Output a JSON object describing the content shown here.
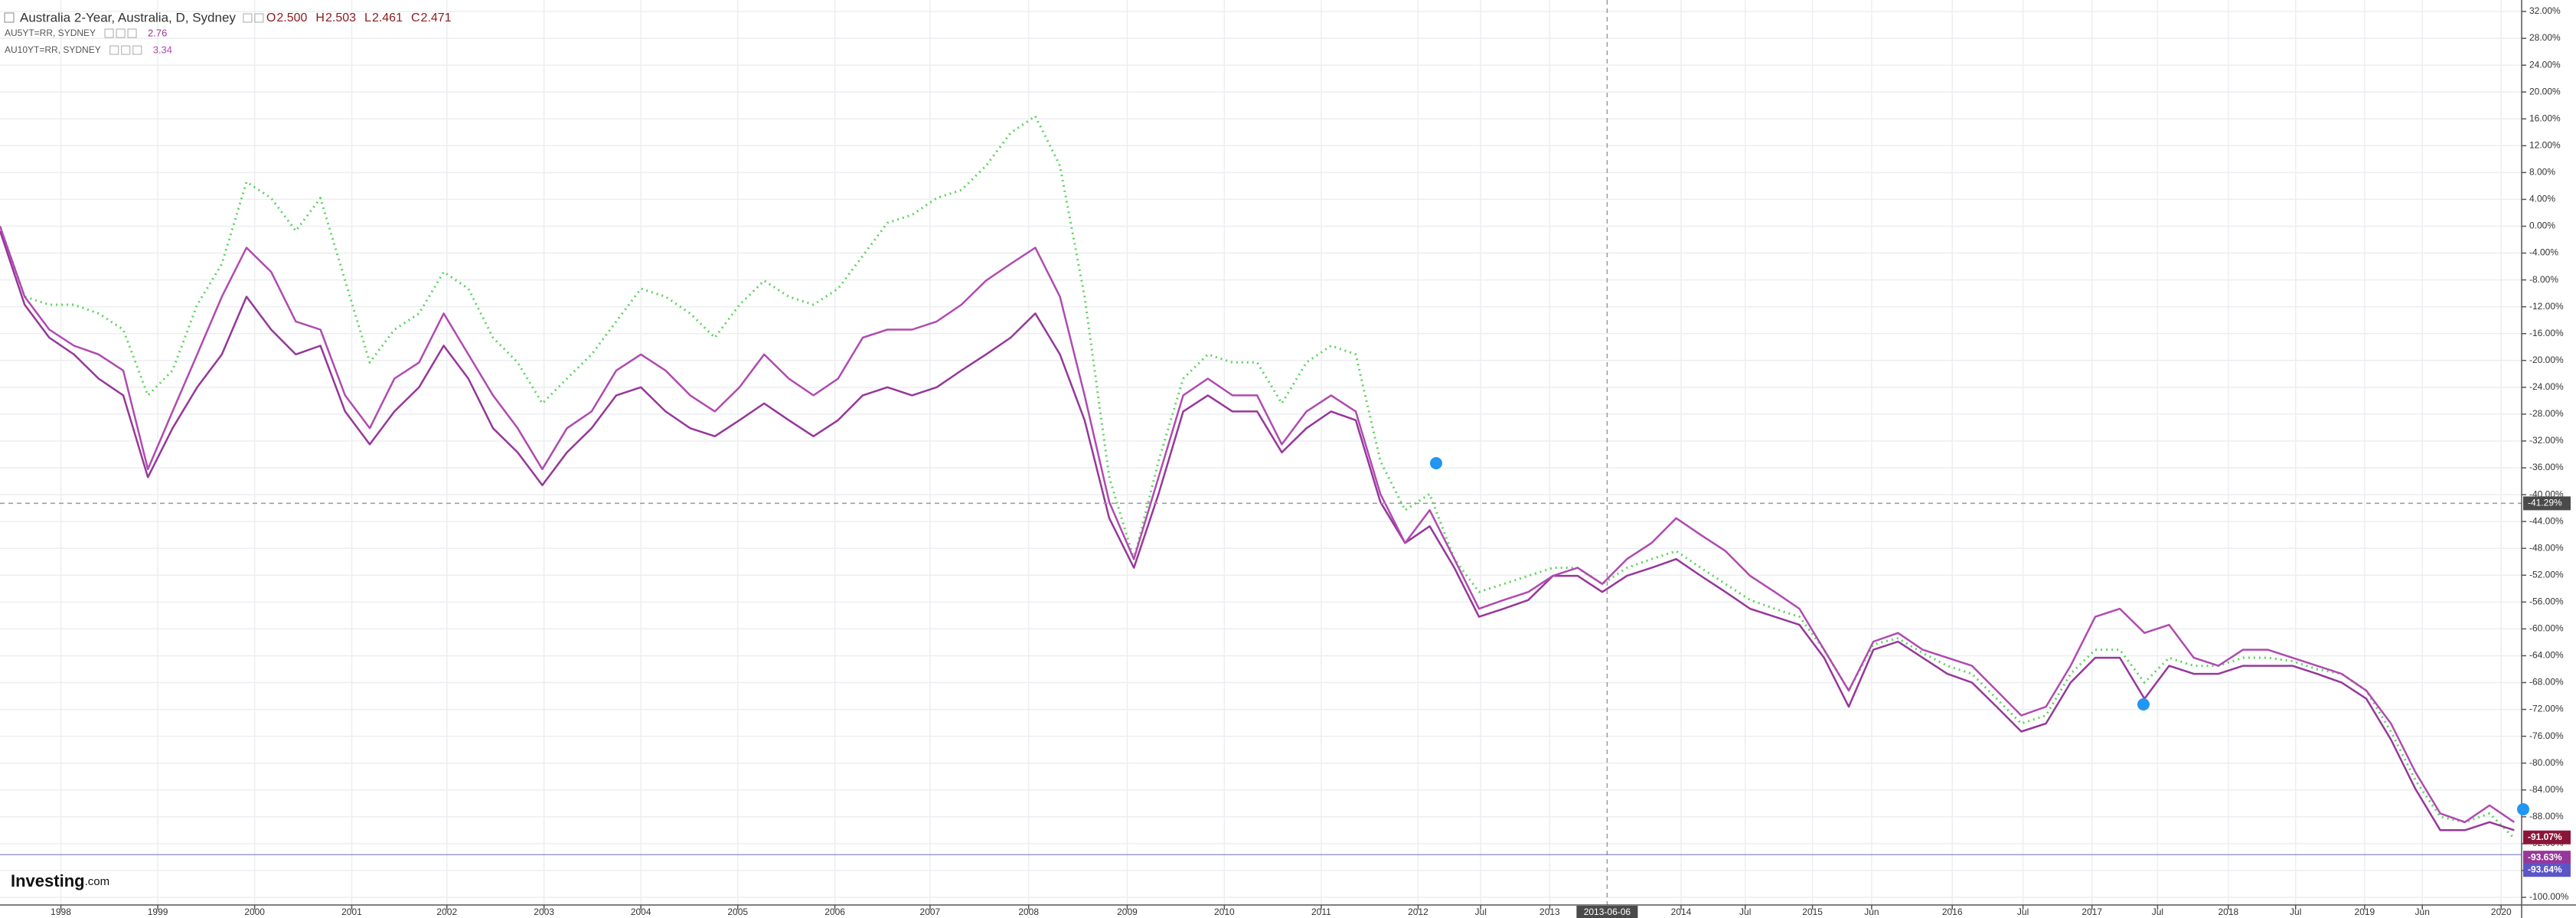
{
  "chart_data": {
    "type": "line",
    "series": [
      {
        "name": "Australia 2-Year, Australia, D, Sydney",
        "color": "#5fd35f",
        "dashed": true,
        "ohlc": [
          {
            "key": "O",
            "value": 2.5,
            "label": "2.500"
          },
          {
            "key": "H",
            "value": 2.503,
            "label": "2.503"
          },
          {
            "key": "L",
            "value": 2.461,
            "label": "2.461"
          },
          {
            "key": "C",
            "value": 2.471,
            "label": "2.471"
          }
        ],
        "values": [
          0,
          -10.5,
          -11.7,
          -11.7,
          -13.0,
          -15.4,
          -25.2,
          -21.5,
          -11.7,
          -5.6,
          6.6,
          4.2,
          -0.7,
          4.2,
          -8.1,
          -20.3,
          -15.4,
          -13.0,
          -6.8,
          -9.3,
          -16.6,
          -20.3,
          -26.4,
          -22.7,
          -19.1,
          -14.2,
          -9.3,
          -10.5,
          -13.0,
          -16.6,
          -11.7,
          -8.1,
          -10.5,
          -11.7,
          -9.3,
          -4.4,
          0.5,
          1.7,
          4.2,
          5.4,
          9.0,
          13.9,
          16.4,
          9.0,
          -10.5,
          -37.4,
          -49.6,
          -35.0,
          -22.7,
          -19.1,
          -20.3,
          -20.3,
          -26.4,
          -20.3,
          -17.8,
          -19.1,
          -35.0,
          -42.3,
          -39.9,
          -49.6,
          -54.5,
          -53.3,
          -52.1,
          -50.9,
          -50.9,
          -53.3,
          -50.9,
          -49.6,
          -48.4,
          -50.9,
          -53.3,
          -55.7,
          -57.0,
          -58.2,
          -63.1,
          -69.2,
          -62.3,
          -61.4,
          -63.6,
          -65.5,
          -66.7,
          -70.4,
          -74.1,
          -72.9,
          -66.7,
          -63.1,
          -63.1,
          -68.0,
          -64.3,
          -65.5,
          -65.5,
          -64.3,
          -64.3,
          -64.8,
          -66.0,
          -66.7,
          -69.2,
          -75.3,
          -82.6,
          -88.0,
          -88.8,
          -87.5,
          -91.2
        ]
      },
      {
        "name": "AU5YT=RR, SYDNEY",
        "color": "#96379a",
        "last": 2.76,
        "values": [
          -0.7,
          -11.7,
          -16.6,
          -19.1,
          -22.7,
          -25.2,
          -37.4,
          -30.1,
          -24.0,
          -19.1,
          -10.5,
          -15.4,
          -19.1,
          -17.8,
          -27.6,
          -32.5,
          -27.6,
          -24.0,
          -17.8,
          -22.7,
          -30.1,
          -33.7,
          -38.6,
          -33.7,
          -30.1,
          -25.2,
          -24.0,
          -27.6,
          -30.1,
          -31.3,
          -28.9,
          -26.4,
          -28.9,
          -31.3,
          -28.9,
          -25.2,
          -24.0,
          -25.2,
          -24.0,
          -21.5,
          -19.1,
          -16.6,
          -13.0,
          -19.1,
          -28.9,
          -43.5,
          -50.9,
          -39.9,
          -27.6,
          -25.2,
          -27.6,
          -27.6,
          -33.7,
          -30.1,
          -27.6,
          -28.9,
          -41.1,
          -47.2,
          -44.7,
          -50.9,
          -58.2,
          -57.0,
          -55.7,
          -52.1,
          -52.1,
          -54.5,
          -52.1,
          -50.9,
          -49.6,
          -52.1,
          -54.5,
          -57.0,
          -58.2,
          -59.4,
          -64.3,
          -71.6,
          -63.1,
          -61.9,
          -64.3,
          -66.7,
          -68.0,
          -71.6,
          -75.3,
          -74.1,
          -68.0,
          -64.3,
          -64.3,
          -70.4,
          -65.5,
          -66.7,
          -66.7,
          -65.5,
          -65.5,
          -65.5,
          -66.7,
          -68.0,
          -70.4,
          -76.5,
          -83.9,
          -90.0,
          -90.0,
          -88.8,
          -90.0
        ]
      },
      {
        "name": "AU10YT=RR, SYDNEY",
        "color": "#b04ab0",
        "last": 3.34,
        "values": [
          0,
          -10.5,
          -15.4,
          -17.8,
          -19.1,
          -21.5,
          -36.2,
          -27.6,
          -19.1,
          -10.5,
          -3.2,
          -6.8,
          -14.2,
          -15.4,
          -25.2,
          -30.1,
          -22.7,
          -20.3,
          -13.0,
          -19.1,
          -25.2,
          -30.1,
          -36.2,
          -30.1,
          -27.6,
          -21.5,
          -19.1,
          -21.5,
          -25.2,
          -27.6,
          -24.0,
          -19.1,
          -22.7,
          -25.2,
          -22.7,
          -16.6,
          -15.4,
          -15.4,
          -14.2,
          -11.7,
          -8.1,
          -5.6,
          -3.2,
          -10.5,
          -25.2,
          -41.1,
          -49.6,
          -37.4,
          -25.2,
          -22.7,
          -25.2,
          -25.2,
          -32.5,
          -27.6,
          -25.2,
          -27.6,
          -39.9,
          -47.2,
          -42.3,
          -49.6,
          -57.0,
          -55.7,
          -54.5,
          -52.1,
          -50.9,
          -53.3,
          -49.6,
          -47.2,
          -43.5,
          -46.0,
          -48.4,
          -52.1,
          -54.5,
          -57.0,
          -63.1,
          -69.2,
          -61.9,
          -60.6,
          -63.1,
          -64.3,
          -65.5,
          -69.2,
          -72.9,
          -71.6,
          -65.5,
          -58.2,
          -57.0,
          -60.6,
          -59.4,
          -64.3,
          -65.5,
          -63.1,
          -63.1,
          -64.3,
          -65.5,
          -66.7,
          -69.2,
          -74.1,
          -81.4,
          -87.5,
          -88.8,
          -86.3,
          -88.8
        ]
      }
    ],
    "xlim": [
      0,
      102.3
    ],
    "xticks": [
      {
        "value": 2.47,
        "label": "1998"
      },
      {
        "value": 6.4,
        "label": "1999"
      },
      {
        "value": 10.33,
        "label": "2000"
      },
      {
        "value": 14.27,
        "label": "2001"
      },
      {
        "value": 18.13,
        "label": "2002"
      },
      {
        "value": 22.07,
        "label": "2003"
      },
      {
        "value": 26,
        "label": "2004"
      },
      {
        "value": 29.93,
        "label": "2005"
      },
      {
        "value": 33.87,
        "label": "2006"
      },
      {
        "value": 37.73,
        "label": "2007"
      },
      {
        "value": 41.73,
        "label": "2008"
      },
      {
        "value": 45.73,
        "label": "2009"
      },
      {
        "value": 49.67,
        "label": "2010"
      },
      {
        "value": 53.6,
        "label": "2011"
      },
      {
        "value": 57.53,
        "label": "2012"
      },
      {
        "value": 60.07,
        "label": "Jul"
      },
      {
        "value": 62.87,
        "label": "2013"
      },
      {
        "value": 68.2,
        "label": "2014"
      },
      {
        "value": 70.8,
        "label": "Jul"
      },
      {
        "value": 73.53,
        "label": "2015"
      },
      {
        "value": 75.93,
        "label": "Jun"
      },
      {
        "value": 79.2,
        "label": "2016"
      },
      {
        "value": 82.07,
        "label": "Jul"
      },
      {
        "value": 84.87,
        "label": "2017"
      },
      {
        "value": 87.53,
        "label": "Jul"
      },
      {
        "value": 90.4,
        "label": "2018"
      },
      {
        "value": 93.13,
        "label": "Jul"
      },
      {
        "value": 95.93,
        "label": "2019"
      },
      {
        "value": 98.27,
        "label": "Jun"
      },
      {
        "value": 101.47,
        "label": "2020"
      }
    ],
    "ylim": [
      -100,
      32
    ],
    "yticks": [
      {
        "value": 32,
        "label": "32.00%"
      },
      {
        "value": 28,
        "label": "28.00%"
      },
      {
        "value": 24,
        "label": "24.00%"
      },
      {
        "value": 20,
        "label": "20.00%"
      },
      {
        "value": 16,
        "label": "16.00%"
      },
      {
        "value": 12,
        "label": "12.00%"
      },
      {
        "value": 8,
        "label": "8.00%"
      },
      {
        "value": 4,
        "label": "4.00%"
      },
      {
        "value": 0,
        "label": "0.00%"
      },
      {
        "value": -4,
        "label": "-4.00%"
      },
      {
        "value": -8,
        "label": "-8.00%"
      },
      {
        "value": -12,
        "label": "-12.00%"
      },
      {
        "value": -16,
        "label": "-16.00%"
      },
      {
        "value": -20,
        "label": "-20.00%"
      },
      {
        "value": -24,
        "label": "-24.00%"
      },
      {
        "value": -28,
        "label": "-28.00%"
      },
      {
        "value": -32,
        "label": "-32.00%"
      },
      {
        "value": -36,
        "label": "-36.00%"
      },
      {
        "value": -40,
        "label": "-40.00%"
      },
      {
        "value": -44,
        "label": "-44.00%"
      },
      {
        "value": -48,
        "label": "-48.00%"
      },
      {
        "value": -52,
        "label": "-52.00%"
      },
      {
        "value": -56,
        "label": "-56.00%"
      },
      {
        "value": -60,
        "label": "-60.00%"
      },
      {
        "value": -64,
        "label": "-64.00%"
      },
      {
        "value": -68,
        "label": "-68.00%"
      },
      {
        "value": -72,
        "label": "-72.00%"
      },
      {
        "value": -76,
        "label": "-76.00%"
      },
      {
        "value": -80,
        "label": "-80.00%"
      },
      {
        "value": -84,
        "label": "-84.00%"
      },
      {
        "value": -88,
        "label": "-88.00%"
      },
      {
        "value": -92,
        "label": "-92.00%"
      },
      {
        "value": -96,
        "label": "-96.00%"
      },
      {
        "value": -100,
        "label": "-100.00%"
      }
    ],
    "grid": true,
    "crosshair": {
      "x": {
        "value": 65.2,
        "label": "2013-06-06"
      },
      "y": {
        "value": -41.29,
        "label": "-41.29%"
      }
    },
    "price_labels": [
      {
        "value": -91.07,
        "label": "-91.07%",
        "color": "#8b1538"
      },
      {
        "value": -93.63,
        "label": "-93.63%",
        "color": "#96379a"
      },
      {
        "value": -93.64,
        "label": "-93.64%",
        "color": "#5b55c8"
      }
    ],
    "logo": [
      "Investing",
      ".com"
    ]
  }
}
